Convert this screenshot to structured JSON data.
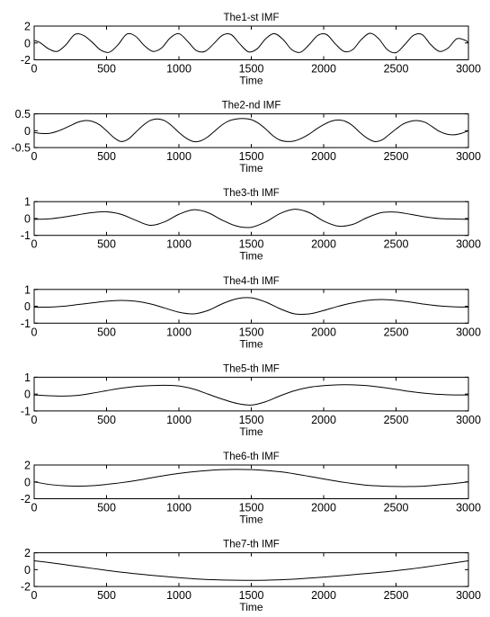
{
  "chart_data": [
    {
      "type": "line",
      "title": "The1-st IMF",
      "xlabel": "Time",
      "ylabel": "",
      "xlim": [
        0,
        3000
      ],
      "ylim": [
        -2,
        2
      ],
      "xticks": [
        0,
        500,
        1000,
        1500,
        2000,
        2500,
        3000
      ],
      "yticks": [
        2,
        0,
        -2
      ],
      "grid": false,
      "series": [
        {
          "x": [
            0,
            40,
            100,
            160,
            220,
            280,
            340,
            400,
            460,
            520,
            580,
            640,
            700,
            760,
            820,
            880,
            940,
            1000,
            1060,
            1120,
            1180,
            1240,
            1300,
            1360,
            1420,
            1480,
            1540,
            1600,
            1660,
            1720,
            1780,
            1840,
            1900,
            1960,
            2020,
            2080,
            2140,
            2200,
            2260,
            2320,
            2380,
            2440,
            2500,
            2560,
            2620,
            2680,
            2740,
            2800,
            2860,
            2920,
            2980,
            3000
          ],
          "y": [
            0.3,
            0.05,
            -0.7,
            -1.0,
            -0.2,
            1.0,
            0.9,
            0.1,
            -0.85,
            -1.1,
            -0.2,
            1.05,
            0.8,
            -0.3,
            -1.0,
            -0.6,
            0.6,
            1.1,
            0.2,
            -0.9,
            -1.0,
            -0.1,
            0.9,
            1.0,
            -0.1,
            -1.05,
            -0.7,
            0.5,
            1.1,
            0.4,
            -0.8,
            -1.1,
            -0.2,
            0.9,
            1.0,
            -0.1,
            -1.0,
            -0.8,
            0.4,
            1.15,
            0.5,
            -0.8,
            -1.15,
            -0.2,
            0.9,
            1.0,
            -0.2,
            -1.0,
            -0.6,
            0.5,
            0.3,
            0.0
          ]
        }
      ]
    },
    {
      "type": "line",
      "title": "The2-nd IMF",
      "xlabel": "Time",
      "ylabel": "",
      "xlim": [
        0,
        3000
      ],
      "ylim": [
        -0.5,
        0.5
      ],
      "xticks": [
        0,
        500,
        1000,
        1500,
        2000,
        2500,
        3000
      ],
      "yticks": [
        0.5,
        0,
        -0.5
      ],
      "grid": false,
      "series": [
        {
          "x": [
            0,
            50,
            100,
            150,
            200,
            250,
            300,
            350,
            400,
            450,
            500,
            550,
            600,
            650,
            700,
            750,
            800,
            850,
            900,
            950,
            1000,
            1050,
            1100,
            1150,
            1200,
            1250,
            1300,
            1350,
            1400,
            1450,
            1500,
            1550,
            1600,
            1650,
            1700,
            1750,
            1800,
            1850,
            1900,
            1950,
            2000,
            2050,
            2100,
            2150,
            2200,
            2250,
            2300,
            2350,
            2400,
            2450,
            2500,
            2550,
            2600,
            2650,
            2700,
            2750,
            2800,
            2850,
            2900,
            2950,
            3000
          ],
          "y": [
            -0.05,
            -0.08,
            -0.08,
            -0.03,
            0.05,
            0.15,
            0.25,
            0.3,
            0.28,
            0.18,
            0.0,
            -0.2,
            -0.32,
            -0.25,
            -0.05,
            0.15,
            0.3,
            0.35,
            0.3,
            0.15,
            -0.05,
            -0.22,
            -0.32,
            -0.3,
            -0.18,
            0.0,
            0.18,
            0.3,
            0.35,
            0.36,
            0.33,
            0.22,
            0.05,
            -0.15,
            -0.28,
            -0.32,
            -0.3,
            -0.22,
            -0.1,
            0.05,
            0.18,
            0.28,
            0.32,
            0.28,
            0.15,
            -0.05,
            -0.22,
            -0.32,
            -0.28,
            -0.12,
            0.05,
            0.2,
            0.28,
            0.3,
            0.25,
            0.12,
            -0.02,
            -0.1,
            -0.12,
            -0.08,
            0.0
          ]
        }
      ]
    },
    {
      "type": "line",
      "title": "The3-th IMF",
      "xlabel": "Time",
      "ylabel": "",
      "xlim": [
        0,
        3000
      ],
      "ylim": [
        -1,
        1
      ],
      "xticks": [
        0,
        500,
        1000,
        1500,
        2000,
        2500,
        3000
      ],
      "yticks": [
        1,
        0,
        -1
      ],
      "grid": false,
      "series": [
        {
          "x": [
            0,
            100,
            200,
            300,
            400,
            500,
            600,
            700,
            800,
            900,
            1000,
            1100,
            1200,
            1300,
            1400,
            1500,
            1600,
            1700,
            1800,
            1900,
            2000,
            2100,
            2200,
            2300,
            2400,
            2500,
            2600,
            2700,
            2800,
            2900,
            3000
          ],
          "y": [
            -0.05,
            -0.02,
            0.08,
            0.22,
            0.35,
            0.4,
            0.25,
            -0.1,
            -0.4,
            -0.2,
            0.25,
            0.52,
            0.35,
            -0.1,
            -0.45,
            -0.52,
            -0.2,
            0.3,
            0.55,
            0.35,
            -0.15,
            -0.45,
            -0.35,
            0.05,
            0.35,
            0.38,
            0.25,
            0.1,
            0.0,
            -0.03,
            -0.05
          ]
        }
      ]
    },
    {
      "type": "line",
      "title": "The4-th IMF",
      "xlabel": "Time",
      "ylabel": "",
      "xlim": [
        0,
        3000
      ],
      "ylim": [
        -1,
        1
      ],
      "xticks": [
        0,
        500,
        1000,
        1500,
        2000,
        2500,
        3000
      ],
      "yticks": [
        1,
        0,
        -1
      ],
      "grid": false,
      "series": [
        {
          "x": [
            0,
            100,
            200,
            300,
            400,
            500,
            600,
            700,
            800,
            900,
            1000,
            1100,
            1200,
            1300,
            1400,
            1500,
            1600,
            1700,
            1800,
            1900,
            2000,
            2100,
            2200,
            2300,
            2400,
            2500,
            2600,
            2700,
            2800,
            2900,
            3000
          ],
          "y": [
            -0.05,
            -0.05,
            0.0,
            0.1,
            0.2,
            0.3,
            0.35,
            0.3,
            0.15,
            -0.1,
            -0.35,
            -0.45,
            -0.25,
            0.15,
            0.45,
            0.5,
            0.25,
            -0.15,
            -0.45,
            -0.45,
            -0.25,
            0.0,
            0.2,
            0.35,
            0.4,
            0.35,
            0.25,
            0.12,
            0.02,
            -0.03,
            -0.05
          ]
        }
      ]
    },
    {
      "type": "line",
      "title": "The5-th IMF",
      "xlabel": "Time",
      "ylabel": "",
      "xlim": [
        0,
        3000
      ],
      "ylim": [
        -1,
        1
      ],
      "xticks": [
        0,
        500,
        1000,
        1500,
        2000,
        2500,
        3000
      ],
      "yticks": [
        1,
        0,
        -1
      ],
      "grid": false,
      "series": [
        {
          "x": [
            0,
            100,
            200,
            300,
            400,
            500,
            600,
            700,
            800,
            900,
            1000,
            1100,
            1200,
            1300,
            1400,
            1500,
            1600,
            1700,
            1800,
            1900,
            2000,
            2100,
            2200,
            2300,
            2400,
            2500,
            2600,
            2700,
            2800,
            2900,
            3000
          ],
          "y": [
            -0.05,
            -0.1,
            -0.12,
            -0.08,
            0.05,
            0.2,
            0.35,
            0.45,
            0.5,
            0.52,
            0.48,
            0.3,
            0.0,
            -0.3,
            -0.55,
            -0.65,
            -0.45,
            -0.1,
            0.2,
            0.4,
            0.5,
            0.55,
            0.55,
            0.5,
            0.4,
            0.28,
            0.15,
            0.05,
            -0.02,
            -0.05,
            -0.05
          ]
        }
      ]
    },
    {
      "type": "line",
      "title": "The6-th IMF",
      "xlabel": "Time",
      "ylabel": "",
      "xlim": [
        0,
        3000
      ],
      "ylim": [
        -2,
        2
      ],
      "xticks": [
        0,
        500,
        1000,
        1500,
        2000,
        2500,
        3000
      ],
      "yticks": [
        2,
        0,
        -2
      ],
      "grid": false,
      "series": [
        {
          "x": [
            0,
            100,
            200,
            300,
            400,
            500,
            600,
            700,
            800,
            900,
            1000,
            1100,
            1200,
            1300,
            1400,
            1500,
            1600,
            1700,
            1800,
            1900,
            2000,
            2100,
            2200,
            2300,
            2400,
            2500,
            2600,
            2700,
            2800,
            2900,
            3000
          ],
          "y": [
            0.0,
            -0.3,
            -0.45,
            -0.5,
            -0.45,
            -0.3,
            -0.1,
            0.15,
            0.45,
            0.75,
            1.0,
            1.2,
            1.35,
            1.45,
            1.48,
            1.45,
            1.35,
            1.2,
            0.95,
            0.65,
            0.35,
            0.05,
            -0.2,
            -0.4,
            -0.5,
            -0.55,
            -0.55,
            -0.5,
            -0.35,
            -0.2,
            0.0
          ]
        }
      ]
    },
    {
      "type": "line",
      "title": "The7-th IMF",
      "xlabel": "Time",
      "ylabel": "",
      "xlim": [
        0,
        3000
      ],
      "ylim": [
        -2,
        2
      ],
      "xticks": [
        0,
        500,
        1000,
        1500,
        2000,
        2500,
        3000
      ],
      "yticks": [
        2,
        0,
        -2
      ],
      "grid": false,
      "series": [
        {
          "x": [
            0,
            100,
            200,
            300,
            400,
            500,
            600,
            700,
            800,
            900,
            1000,
            1100,
            1200,
            1300,
            1400,
            1500,
            1600,
            1700,
            1800,
            1900,
            2000,
            2100,
            2200,
            2300,
            2400,
            2500,
            2600,
            2700,
            2800,
            2900,
            3000
          ],
          "y": [
            1.05,
            0.85,
            0.62,
            0.38,
            0.15,
            -0.08,
            -0.3,
            -0.48,
            -0.65,
            -0.8,
            -0.95,
            -1.08,
            -1.17,
            -1.23,
            -1.26,
            -1.27,
            -1.25,
            -1.2,
            -1.12,
            -1.0,
            -0.88,
            -0.75,
            -0.6,
            -0.45,
            -0.3,
            -0.12,
            0.08,
            0.3,
            0.55,
            0.8,
            1.05
          ]
        }
      ]
    }
  ]
}
